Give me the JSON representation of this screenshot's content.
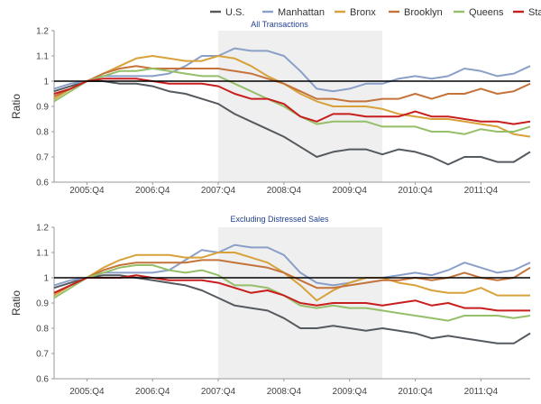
{
  "chart_data": {
    "type": "line",
    "legend": {
      "placement": "top-right",
      "entries": [
        "U.S.",
        "Manhattan",
        "Bronx",
        "Brooklyn",
        "Queens",
        "Staten Island"
      ]
    },
    "colors": {
      "U.S.": "#555a60",
      "Manhattan": "#8aa0c8",
      "Bronx": "#d8a13a",
      "Brooklyn": "#c4743a",
      "Queens": "#96bf6a",
      "Staten Island": "#c81e1e",
      "reference": "#000000",
      "shade": "#efefef"
    },
    "shaded_region": {
      "x_start": "2007:Q4",
      "x_end": "2010:Q2"
    },
    "reference_line": 1,
    "x_tick_labels": [
      "2005:Q4",
      "2006:Q4",
      "2007:Q4",
      "2008:Q4",
      "2009:Q4",
      "2010:Q4",
      "2011:Q4"
    ],
    "panels": [
      {
        "title": "All Transactions",
        "ylabel": "Ratio",
        "ylim": [
          0.6,
          1.2
        ],
        "y_ticks": [
          "0.6",
          "0.7",
          "0.8",
          "0.9",
          "1",
          "1.1",
          "1.2"
        ],
        "x": [
          "2005:Q2",
          "2005:Q3",
          "2005:Q4",
          "2006:Q1",
          "2006:Q2",
          "2006:Q3",
          "2006:Q4",
          "2007:Q1",
          "2007:Q2",
          "2007:Q3",
          "2007:Q4",
          "2008:Q1",
          "2008:Q2",
          "2008:Q3",
          "2008:Q4",
          "2009:Q1",
          "2009:Q2",
          "2009:Q3",
          "2009:Q4",
          "2010:Q1",
          "2010:Q2",
          "2010:Q3",
          "2010:Q4",
          "2011:Q1",
          "2011:Q2",
          "2011:Q3",
          "2011:Q4",
          "2012:Q1",
          "2012:Q2",
          "2012:Q3"
        ],
        "series": [
          {
            "name": "U.S.",
            "values": [
              0.96,
              0.98,
              1.0,
              1.0,
              0.99,
              0.99,
              0.98,
              0.96,
              0.95,
              0.93,
              0.91,
              0.87,
              0.84,
              0.81,
              0.78,
              0.74,
              0.7,
              0.72,
              0.73,
              0.73,
              0.71,
              0.73,
              0.72,
              0.7,
              0.67,
              0.7,
              0.7,
              0.68,
              0.68,
              0.72
            ]
          },
          {
            "name": "Manhattan",
            "values": [
              0.97,
              0.99,
              1.0,
              1.02,
              1.02,
              1.02,
              1.02,
              1.03,
              1.06,
              1.1,
              1.1,
              1.13,
              1.12,
              1.12,
              1.1,
              1.04,
              0.97,
              0.96,
              0.97,
              0.99,
              0.99,
              1.01,
              1.02,
              1.01,
              1.02,
              1.05,
              1.04,
              1.02,
              1.03,
              1.06
            ]
          },
          {
            "name": "Bronx",
            "values": [
              0.93,
              0.97,
              1.0,
              1.03,
              1.06,
              1.09,
              1.1,
              1.09,
              1.08,
              1.08,
              1.1,
              1.09,
              1.06,
              1.02,
              0.99,
              0.95,
              0.92,
              0.9,
              0.9,
              0.9,
              0.89,
              0.87,
              0.86,
              0.85,
              0.85,
              0.84,
              0.83,
              0.82,
              0.79,
              0.78
            ]
          },
          {
            "name": "Brooklyn",
            "values": [
              0.94,
              0.97,
              1.0,
              1.03,
              1.05,
              1.06,
              1.05,
              1.05,
              1.05,
              1.05,
              1.05,
              1.04,
              1.03,
              1.01,
              0.99,
              0.96,
              0.93,
              0.93,
              0.92,
              0.92,
              0.93,
              0.93,
              0.95,
              0.93,
              0.95,
              0.95,
              0.97,
              0.95,
              0.96,
              0.99
            ]
          },
          {
            "name": "Queens",
            "values": [
              0.92,
              0.96,
              1.0,
              1.02,
              1.04,
              1.04,
              1.05,
              1.04,
              1.03,
              1.02,
              1.02,
              0.99,
              0.96,
              0.93,
              0.9,
              0.86,
              0.83,
              0.84,
              0.84,
              0.84,
              0.82,
              0.82,
              0.82,
              0.8,
              0.8,
              0.79,
              0.81,
              0.8,
              0.8,
              0.82
            ]
          },
          {
            "name": "Staten Island",
            "values": [
              0.95,
              0.97,
              1.0,
              1.01,
              1.01,
              1.01,
              1.0,
              0.99,
              0.99,
              0.99,
              0.98,
              0.95,
              0.93,
              0.93,
              0.91,
              0.86,
              0.84,
              0.87,
              0.87,
              0.86,
              0.86,
              0.86,
              0.88,
              0.86,
              0.86,
              0.85,
              0.84,
              0.84,
              0.83,
              0.84
            ]
          }
        ]
      },
      {
        "title": "Excluding Distressed Sales",
        "ylabel": "Ratio",
        "ylim": [
          0.6,
          1.2
        ],
        "y_ticks": [
          "0.6",
          "0.7",
          "0.8",
          "0.9",
          "1",
          "1.1",
          "1.2"
        ],
        "x": [
          "2005:Q2",
          "2005:Q3",
          "2005:Q4",
          "2006:Q1",
          "2006:Q2",
          "2006:Q3",
          "2006:Q4",
          "2007:Q1",
          "2007:Q2",
          "2007:Q3",
          "2007:Q4",
          "2008:Q1",
          "2008:Q2",
          "2008:Q3",
          "2008:Q4",
          "2009:Q1",
          "2009:Q2",
          "2009:Q3",
          "2009:Q4",
          "2010:Q1",
          "2010:Q2",
          "2010:Q3",
          "2010:Q4",
          "2011:Q1",
          "2011:Q2",
          "2011:Q3",
          "2011:Q4",
          "2012:Q1",
          "2012:Q2",
          "2012:Q3"
        ],
        "series": [
          {
            "name": "U.S.",
            "values": [
              0.96,
              0.98,
              1.0,
              1.01,
              1.01,
              1.0,
              0.99,
              0.98,
              0.97,
              0.95,
              0.92,
              0.89,
              0.88,
              0.87,
              0.84,
              0.8,
              0.8,
              0.81,
              0.8,
              0.79,
              0.8,
              0.79,
              0.78,
              0.76,
              0.77,
              0.76,
              0.75,
              0.74,
              0.74,
              0.78
            ]
          },
          {
            "name": "Manhattan",
            "values": [
              0.97,
              0.99,
              1.0,
              1.02,
              1.02,
              1.02,
              1.02,
              1.03,
              1.07,
              1.11,
              1.1,
              1.13,
              1.12,
              1.12,
              1.09,
              1.02,
              0.98,
              0.97,
              0.98,
              1.0,
              1.0,
              1.01,
              1.02,
              1.01,
              1.03,
              1.06,
              1.04,
              1.02,
              1.03,
              1.06
            ]
          },
          {
            "name": "Bronx",
            "values": [
              0.93,
              0.97,
              1.0,
              1.04,
              1.07,
              1.09,
              1.09,
              1.09,
              1.08,
              1.08,
              1.1,
              1.1,
              1.08,
              1.06,
              1.02,
              0.97,
              0.91,
              0.95,
              0.98,
              1.0,
              1.0,
              0.98,
              0.97,
              0.95,
              0.94,
              0.94,
              0.96,
              0.93,
              0.93,
              0.93
            ]
          },
          {
            "name": "Brooklyn",
            "values": [
              0.94,
              0.97,
              1.0,
              1.03,
              1.05,
              1.06,
              1.06,
              1.06,
              1.06,
              1.07,
              1.07,
              1.06,
              1.05,
              1.04,
              1.02,
              0.99,
              0.96,
              0.96,
              0.97,
              0.98,
              0.99,
              0.99,
              1.0,
              0.99,
              1.0,
              1.02,
              1.0,
              0.99,
              1.0,
              1.04
            ]
          },
          {
            "name": "Queens",
            "values": [
              0.92,
              0.96,
              1.0,
              1.02,
              1.04,
              1.05,
              1.05,
              1.03,
              1.02,
              1.03,
              1.01,
              0.97,
              0.97,
              0.96,
              0.93,
              0.89,
              0.88,
              0.89,
              0.88,
              0.88,
              0.87,
              0.86,
              0.85,
              0.84,
              0.83,
              0.85,
              0.85,
              0.85,
              0.84,
              0.85
            ]
          },
          {
            "name": "Staten Island",
            "values": [
              0.94,
              0.97,
              1.0,
              1.0,
              1.0,
              1.01,
              1.0,
              0.99,
              0.99,
              0.99,
              0.98,
              0.96,
              0.94,
              0.95,
              0.93,
              0.9,
              0.89,
              0.9,
              0.9,
              0.9,
              0.89,
              0.9,
              0.91,
              0.89,
              0.9,
              0.88,
              0.88,
              0.87,
              0.87,
              0.87
            ]
          }
        ]
      }
    ]
  }
}
